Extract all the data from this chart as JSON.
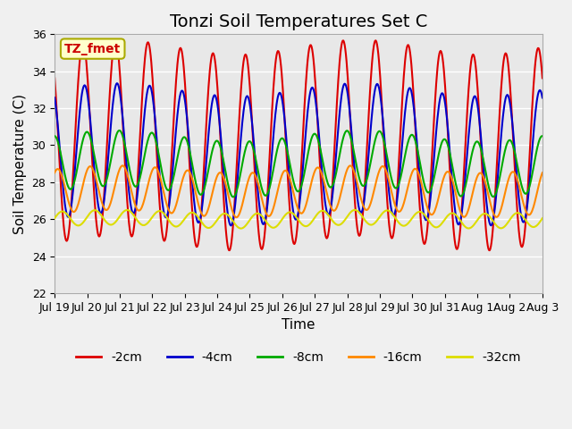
{
  "title": "Tonzi Soil Temperatures Set C",
  "xlabel": "Time",
  "ylabel": "Soil Temperature (C)",
  "ylim": [
    22,
    36
  ],
  "xtick_labels": [
    "Jul 19",
    "Jul 20",
    "Jul 21",
    "Jul 22",
    "Jul 23",
    "Jul 24",
    "Jul 25",
    "Jul 26",
    "Jul 27",
    "Jul 28",
    "Jul 29",
    "Jul 30",
    "Jul 31",
    "Aug 1",
    "Aug 2",
    "Aug 3"
  ],
  "series": [
    {
      "label": "-2cm",
      "color": "#dd0000",
      "linewidth": 1.5
    },
    {
      "label": "-4cm",
      "color": "#0000cc",
      "linewidth": 1.5
    },
    {
      "label": "-8cm",
      "color": "#00aa00",
      "linewidth": 1.5
    },
    {
      "label": "-16cm",
      "color": "#ff8800",
      "linewidth": 1.5
    },
    {
      "label": "-32cm",
      "color": "#dddd00",
      "linewidth": 1.5
    }
  ],
  "annotation_text": "TZ_fmet",
  "annotation_color": "#cc0000",
  "annotation_bg": "#ffffcc",
  "annotation_edge": "#aaaa00",
  "background_color": "#e8e8e8",
  "grid_color": "#ffffff",
  "title_fontsize": 14,
  "axis_label_fontsize": 11,
  "tick_fontsize": 9
}
